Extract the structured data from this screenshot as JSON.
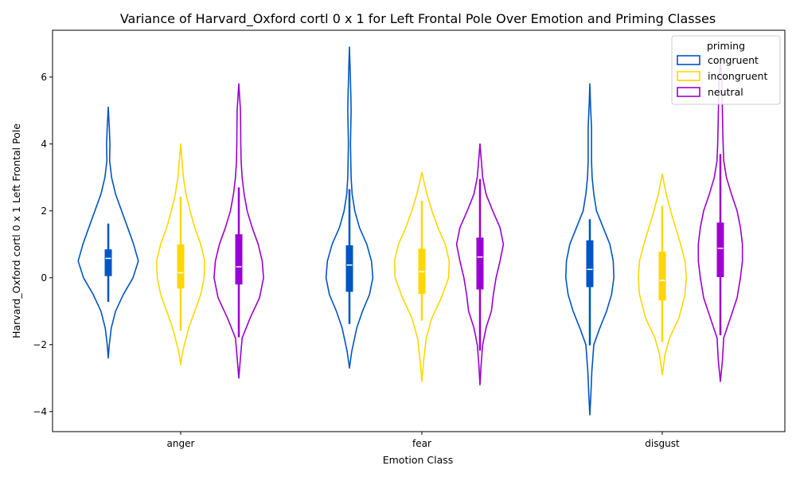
{
  "chart_data": {
    "type": "violin",
    "title": "Variance of Harvard_Oxford cortl 0 x 1 for Left Frontal Pole Over Emotion and Priming Classes",
    "xlabel": "Emotion Class",
    "ylabel": "Harvard_Oxford cortl 0 x 1 Left Frontal Pole",
    "categories": [
      "anger",
      "fear",
      "disgust"
    ],
    "ylim": [
      -4.6,
      7.4
    ],
    "yticks": [
      "−4",
      "−2",
      "0",
      "2",
      "4",
      "6"
    ],
    "ytick_values": [
      -4,
      -2,
      0,
      2,
      4,
      6
    ],
    "grid": false,
    "legend": {
      "title": "priming",
      "placement": "top-right"
    },
    "series": [
      {
        "name": "congruent",
        "color": "#0055c4",
        "violins": [
          {
            "min": -2.4,
            "max": 5.1,
            "q1": 0.05,
            "median": 0.58,
            "q3": 0.85,
            "whisker_low": -0.72,
            "whisker_high": 1.62,
            "profile": [
              [
                -2.4,
                0.0
              ],
              [
                -2.0,
                0.03
              ],
              [
                -1.5,
                0.09
              ],
              [
                -1.0,
                0.22
              ],
              [
                -0.5,
                0.45
              ],
              [
                0.0,
                0.74
              ],
              [
                0.5,
                0.9
              ],
              [
                1.0,
                0.76
              ],
              [
                1.5,
                0.58
              ],
              [
                2.0,
                0.4
              ],
              [
                2.5,
                0.22
              ],
              [
                3.0,
                0.1
              ],
              [
                3.5,
                0.04
              ],
              [
                4.0,
                0.05
              ],
              [
                4.5,
                0.03
              ],
              [
                5.1,
                0.0
              ]
            ]
          },
          {
            "min": -2.7,
            "max": 6.9,
            "q1": -0.42,
            "median": 0.38,
            "q3": 0.97,
            "whisker_low": -1.38,
            "whisker_high": 2.65,
            "profile": [
              [
                -2.7,
                0.0
              ],
              [
                -2.2,
                0.07
              ],
              [
                -1.5,
                0.22
              ],
              [
                -1.0,
                0.39
              ],
              [
                -0.5,
                0.6
              ],
              [
                0.0,
                0.7
              ],
              [
                0.5,
                0.66
              ],
              [
                1.0,
                0.52
              ],
              [
                1.5,
                0.3
              ],
              [
                2.0,
                0.16
              ],
              [
                2.5,
                0.08
              ],
              [
                3.0,
                0.05
              ],
              [
                3.5,
                0.04
              ],
              [
                4.0,
                0.03
              ],
              [
                5.0,
                0.05
              ],
              [
                5.5,
                0.04
              ],
              [
                6.3,
                0.02
              ],
              [
                6.9,
                0.0
              ]
            ]
          },
          {
            "min": -4.1,
            "max": 5.8,
            "q1": -0.28,
            "median": 0.25,
            "q3": 1.12,
            "whisker_low": -2.02,
            "whisker_high": 1.75,
            "profile": [
              [
                -4.1,
                0.0
              ],
              [
                -3.5,
                0.03
              ],
              [
                -2.8,
                0.06
              ],
              [
                -2.0,
                0.12
              ],
              [
                -1.5,
                0.3
              ],
              [
                -1.0,
                0.5
              ],
              [
                -0.5,
                0.65
              ],
              [
                0.0,
                0.72
              ],
              [
                0.5,
                0.7
              ],
              [
                1.0,
                0.6
              ],
              [
                1.5,
                0.4
              ],
              [
                2.0,
                0.2
              ],
              [
                2.5,
                0.12
              ],
              [
                3.0,
                0.07
              ],
              [
                3.5,
                0.05
              ],
              [
                4.5,
                0.05
              ],
              [
                5.2,
                0.02
              ],
              [
                5.8,
                0.0
              ]
            ]
          }
        ]
      },
      {
        "name": "incongruent",
        "color": "#ffd700",
        "violins": [
          {
            "min": -2.6,
            "max": 4.0,
            "q1": -0.32,
            "median": 0.15,
            "q3": 1.0,
            "whisker_low": -1.58,
            "whisker_high": 2.42,
            "profile": [
              [
                -2.6,
                0.0
              ],
              [
                -2.2,
                0.06
              ],
              [
                -1.5,
                0.24
              ],
              [
                -1.0,
                0.42
              ],
              [
                -0.5,
                0.6
              ],
              [
                0.0,
                0.7
              ],
              [
                0.5,
                0.72
              ],
              [
                1.0,
                0.6
              ],
              [
                1.5,
                0.42
              ],
              [
                2.0,
                0.28
              ],
              [
                2.5,
                0.16
              ],
              [
                3.0,
                0.08
              ],
              [
                3.5,
                0.04
              ],
              [
                4.0,
                0.0
              ]
            ]
          },
          {
            "min": -3.1,
            "max": 3.15,
            "q1": -0.48,
            "median": 0.18,
            "q3": 0.87,
            "whisker_low": -1.28,
            "whisker_high": 2.3,
            "profile": [
              [
                -3.1,
                0.0
              ],
              [
                -2.5,
                0.05
              ],
              [
                -1.8,
                0.13
              ],
              [
                -1.2,
                0.3
              ],
              [
                -0.6,
                0.58
              ],
              [
                0.0,
                0.8
              ],
              [
                0.5,
                0.82
              ],
              [
                1.0,
                0.7
              ],
              [
                1.5,
                0.48
              ],
              [
                2.0,
                0.3
              ],
              [
                2.5,
                0.15
              ],
              [
                3.15,
                0.0
              ]
            ]
          },
          {
            "min": -2.9,
            "max": 3.1,
            "q1": -0.68,
            "median": -0.08,
            "q3": 0.78,
            "whisker_low": -1.92,
            "whisker_high": 2.15,
            "profile": [
              [
                -2.9,
                0.0
              ],
              [
                -2.3,
                0.08
              ],
              [
                -1.8,
                0.22
              ],
              [
                -1.2,
                0.5
              ],
              [
                -0.5,
                0.68
              ],
              [
                0.0,
                0.72
              ],
              [
                0.5,
                0.68
              ],
              [
                1.0,
                0.55
              ],
              [
                1.5,
                0.4
              ],
              [
                2.0,
                0.25
              ],
              [
                2.5,
                0.12
              ],
              [
                3.1,
                0.0
              ]
            ]
          }
        ]
      },
      {
        "name": "neutral",
        "color": "#9b00d3",
        "violins": [
          {
            "min": -3.0,
            "max": 5.8,
            "q1": -0.2,
            "median": 0.33,
            "q3": 1.3,
            "whisker_low": -1.78,
            "whisker_high": 2.7,
            "profile": [
              [
                -3.0,
                0.0
              ],
              [
                -2.5,
                0.04
              ],
              [
                -1.8,
                0.1
              ],
              [
                -1.2,
                0.34
              ],
              [
                -0.6,
                0.62
              ],
              [
                0.0,
                0.74
              ],
              [
                0.5,
                0.7
              ],
              [
                1.0,
                0.58
              ],
              [
                1.5,
                0.4
              ],
              [
                2.0,
                0.25
              ],
              [
                2.5,
                0.16
              ],
              [
                3.0,
                0.1
              ],
              [
                3.5,
                0.07
              ],
              [
                4.0,
                0.06
              ],
              [
                5.0,
                0.05
              ],
              [
                5.8,
                0.0
              ]
            ]
          },
          {
            "min": -3.2,
            "max": 4.0,
            "q1": -0.35,
            "median": 0.62,
            "q3": 1.2,
            "whisker_low": -2.18,
            "whisker_high": 2.95,
            "profile": [
              [
                -3.2,
                0.0
              ],
              [
                -2.5,
                0.04
              ],
              [
                -2.0,
                0.08
              ],
              [
                -1.5,
                0.18
              ],
              [
                -1.0,
                0.34
              ],
              [
                -0.5,
                0.4
              ],
              [
                0.0,
                0.48
              ],
              [
                0.5,
                0.6
              ],
              [
                1.0,
                0.7
              ],
              [
                1.5,
                0.6
              ],
              [
                2.0,
                0.38
              ],
              [
                2.5,
                0.18
              ],
              [
                3.0,
                0.08
              ],
              [
                3.5,
                0.04
              ],
              [
                4.0,
                0.0
              ]
            ]
          },
          {
            "min": -3.1,
            "max": 6.4,
            "q1": 0.02,
            "median": 0.88,
            "q3": 1.65,
            "whisker_low": -1.72,
            "whisker_high": 3.7,
            "profile": [
              [
                -3.1,
                0.0
              ],
              [
                -2.5,
                0.06
              ],
              [
                -1.8,
                0.1
              ],
              [
                -1.2,
                0.3
              ],
              [
                -0.6,
                0.5
              ],
              [
                0.0,
                0.6
              ],
              [
                0.5,
                0.66
              ],
              [
                1.0,
                0.66
              ],
              [
                1.5,
                0.6
              ],
              [
                2.0,
                0.5
              ],
              [
                2.5,
                0.33
              ],
              [
                3.0,
                0.18
              ],
              [
                3.5,
                0.1
              ],
              [
                4.0,
                0.08
              ],
              [
                4.5,
                0.07
              ],
              [
                5.5,
                0.05
              ],
              [
                6.0,
                0.04
              ],
              [
                6.4,
                0.0
              ]
            ]
          }
        ]
      }
    ]
  }
}
